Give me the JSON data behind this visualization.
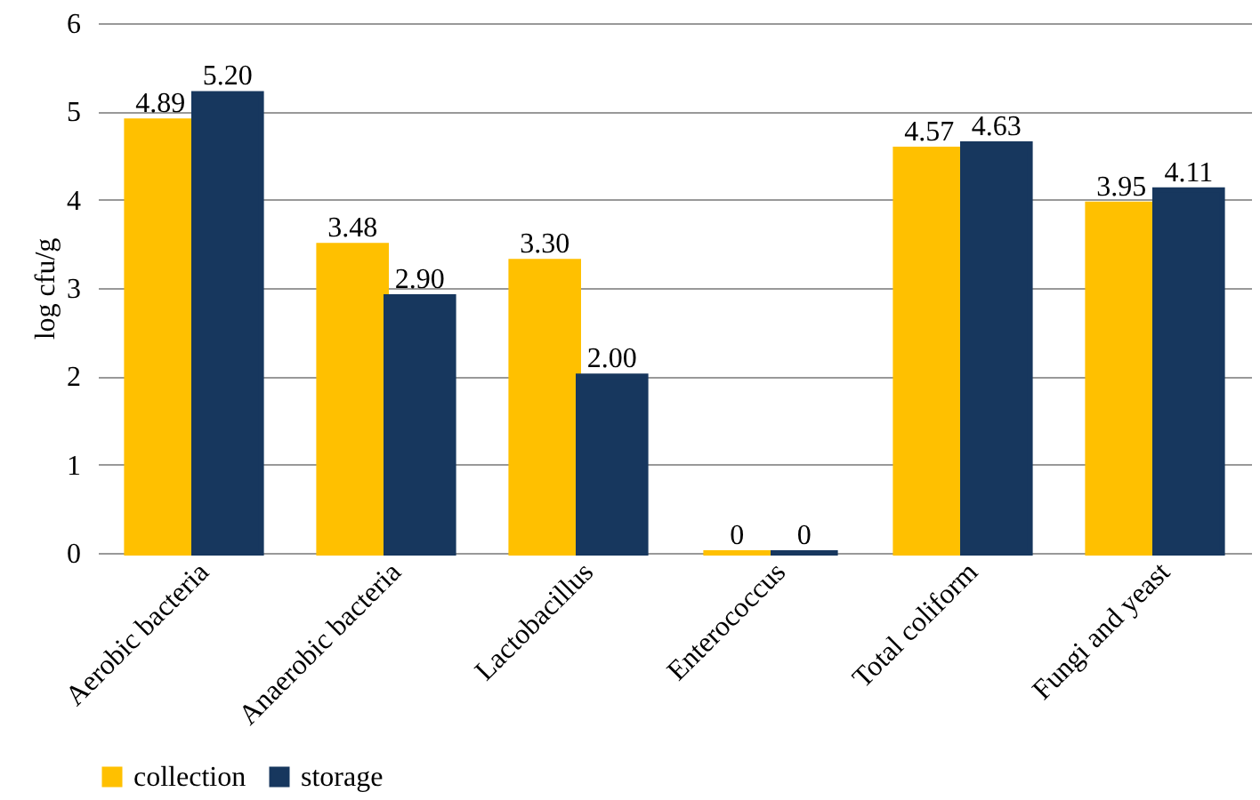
{
  "chart_data": {
    "type": "bar",
    "ylabel": "log cfu/g",
    "categories": [
      "Aerobic bacteria",
      "Anaerobic bacteria",
      "Lactobacillus",
      "Enterococcus",
      "Total coliform",
      "Fungi and yeast"
    ],
    "series": [
      {
        "name": "collection",
        "color": "#ffc000",
        "values": [
          4.89,
          3.48,
          3.3,
          0,
          4.57,
          3.95
        ],
        "value_labels": [
          "4.89",
          "3.48",
          "3.30",
          "0",
          "4.57",
          "3.95"
        ]
      },
      {
        "name": "storage",
        "color": "#17375e",
        "values": [
          5.2,
          2.9,
          2.0,
          0,
          4.63,
          4.11
        ],
        "value_labels": [
          "5.20",
          "2.90",
          "2.00",
          "0",
          "4.63",
          "4.11"
        ]
      }
    ],
    "ylim": [
      0,
      6
    ],
    "yticks": [
      0,
      1,
      2,
      3,
      4,
      5,
      6
    ],
    "grid": "y",
    "legend": "bottom"
  }
}
